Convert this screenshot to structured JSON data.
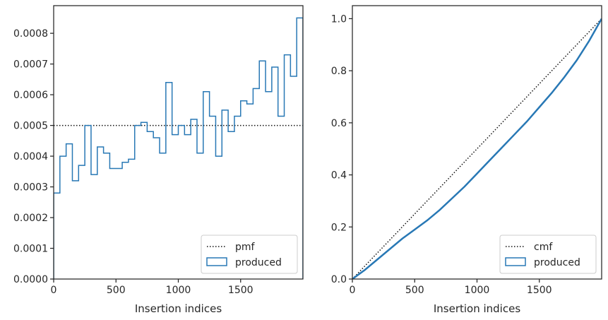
{
  "colors": {
    "produced": "#2878b5",
    "reference": "#111111",
    "frame": "#262626",
    "legend_border": "#cccccc"
  },
  "chart_data": [
    {
      "type": "step-histogram",
      "xlabel": "Insertion indices",
      "ylabel": "",
      "xlim": [
        0,
        2000
      ],
      "ylim": [
        0,
        0.00089
      ],
      "xticks": [
        0,
        500,
        1000,
        1500
      ],
      "xtick_labels": [
        "0",
        "500",
        "1000",
        "1500"
      ],
      "yticks": [
        0,
        0.0001,
        0.0002,
        0.0003,
        0.0004,
        0.0005,
        0.0006,
        0.0007,
        0.0008
      ],
      "ytick_labels": [
        "0.0000",
        "0.0001",
        "0.0002",
        "0.0003",
        "0.0004",
        "0.0005",
        "0.0006",
        "0.0007",
        "0.0008"
      ],
      "legend_position": "lower right",
      "legend": [
        "pmf",
        "produced"
      ],
      "reference_line": {
        "name": "pmf",
        "value": 0.0005
      },
      "bin_edges": [
        0,
        50,
        100,
        150,
        200,
        250,
        300,
        350,
        400,
        450,
        500,
        550,
        600,
        650,
        700,
        750,
        800,
        850,
        900,
        950,
        1000,
        1050,
        1100,
        1150,
        1200,
        1250,
        1300,
        1350,
        1400,
        1450,
        1500,
        1550,
        1600,
        1650,
        1700,
        1750,
        1800,
        1850,
        1900,
        1950,
        2000
      ],
      "series": [
        {
          "name": "produced",
          "values": [
            0.00028,
            0.0004,
            0.00044,
            0.00032,
            0.00037,
            0.0005,
            0.00034,
            0.00043,
            0.00041,
            0.00036,
            0.00036,
            0.00038,
            0.00039,
            0.0005,
            0.00051,
            0.00048,
            0.00046,
            0.00041,
            0.00064,
            0.00047,
            0.0005,
            0.00047,
            0.00052,
            0.00041,
            0.00061,
            0.00053,
            0.0004,
            0.00055,
            0.00048,
            0.00053,
            0.00058,
            0.00057,
            0.00062,
            0.00071,
            0.00061,
            0.00069,
            0.00053,
            0.00073,
            0.00066,
            0.00085
          ]
        }
      ]
    },
    {
      "type": "step-line",
      "xlabel": "Insertion indices",
      "ylabel": "",
      "xlim": [
        0,
        2000
      ],
      "ylim": [
        0,
        1.05
      ],
      "xticks": [
        0,
        500,
        1000,
        1500
      ],
      "xtick_labels": [
        "0",
        "500",
        "1000",
        "1500"
      ],
      "yticks": [
        0,
        0.2,
        0.4,
        0.6,
        0.8,
        1.0
      ],
      "ytick_labels": [
        "0.0",
        "0.2",
        "0.4",
        "0.6",
        "0.8",
        "1.0"
      ],
      "legend_position": "lower right",
      "legend": [
        "cmf",
        "produced"
      ],
      "reference_line": {
        "name": "cmf",
        "from": [
          0,
          0
        ],
        "to": [
          2000,
          1.0
        ]
      },
      "series": [
        {
          "name": "produced",
          "x": [
            0,
            100,
            200,
            300,
            400,
            500,
            600,
            700,
            800,
            900,
            1000,
            1100,
            1200,
            1300,
            1400,
            1500,
            1600,
            1700,
            1800,
            1900,
            2000
          ],
          "y": [
            0.0,
            0.035,
            0.075,
            0.115,
            0.155,
            0.19,
            0.225,
            0.265,
            0.31,
            0.355,
            0.405,
            0.455,
            0.505,
            0.555,
            0.605,
            0.66,
            0.715,
            0.775,
            0.84,
            0.915,
            1.0
          ]
        }
      ]
    }
  ]
}
